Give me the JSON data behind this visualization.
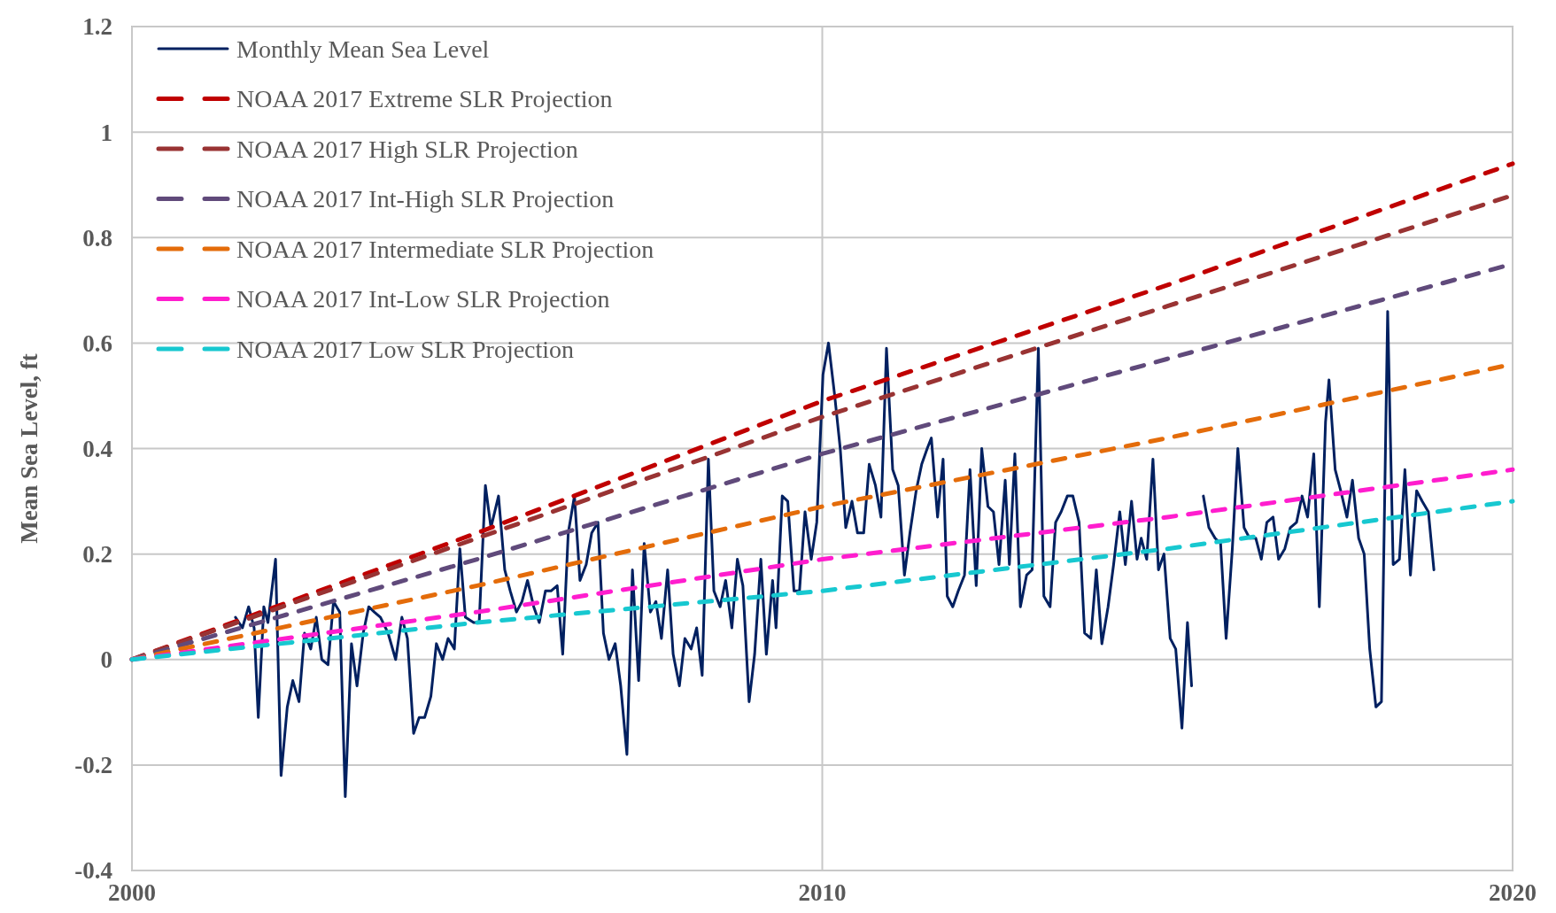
{
  "chart_data": {
    "type": "line",
    "ylabel": "Mean Sea Level, ft",
    "xlim": [
      2000,
      2020
    ],
    "xticks": [
      2000,
      2010,
      2020
    ],
    "ylim": [
      -0.4,
      1.2
    ],
    "yticks": [
      -0.4,
      -0.2,
      0,
      0.2,
      0.4,
      0.6,
      0.8,
      1,
      1.2
    ],
    "grid": true,
    "legend": "top left",
    "series": [
      {
        "name": "Monthly Mean Sea Level",
        "color": "#002060",
        "line_style": "solid",
        "x": [
          2001.5,
          2001.6,
          2001.69,
          2001.77,
          2001.83,
          2001.91,
          2001.97,
          2002.08,
          2002.16,
          2002.25,
          2002.33,
          2002.42,
          2002.5,
          2002.59,
          2002.67,
          2002.75,
          2002.84,
          2002.92,
          2003.01,
          2003.09,
          2003.18,
          2003.26,
          2003.35,
          2003.43,
          2003.51,
          2003.6,
          2003.71,
          2003.82,
          2003.91,
          2003.99,
          2004.08,
          2004.16,
          2004.24,
          2004.33,
          2004.41,
          2004.5,
          2004.58,
          2004.67,
          2004.75,
          2004.83,
          2004.95,
          2005.03,
          2005.12,
          2005.2,
          2005.31,
          2005.4,
          2005.48,
          2005.57,
          2005.65,
          2005.73,
          2005.82,
          2005.9,
          2005.99,
          2006.07,
          2006.16,
          2006.24,
          2006.32,
          2006.41,
          2006.49,
          2006.58,
          2006.66,
          2006.75,
          2006.83,
          2006.91,
          2007.0,
          2007.08,
          2007.17,
          2007.25,
          2007.34,
          2007.42,
          2007.51,
          2007.59,
          2007.67,
          2007.76,
          2007.84,
          2007.93,
          2008.01,
          2008.1,
          2008.18,
          2008.26,
          2008.35,
          2008.43,
          2008.52,
          2008.6,
          2008.69,
          2008.77,
          2008.85,
          2008.94,
          2009.02,
          2009.11,
          2009.19,
          2009.28,
          2009.33,
          2009.42,
          2009.5,
          2009.59,
          2009.67,
          2009.75,
          2009.84,
          2009.92,
          2010.01,
          2010.09,
          2010.18,
          2010.26,
          2010.34,
          2010.43,
          2010.51,
          2010.6,
          2010.68,
          2010.77,
          2010.85,
          2010.93,
          2011.02,
          2011.1,
          2011.19,
          2011.27,
          2011.36,
          2011.44,
          2011.52,
          2011.58,
          2011.67,
          2011.75,
          2011.81,
          2011.89,
          2011.97,
          2012.06,
          2012.14,
          2012.23,
          2012.31,
          2012.4,
          2012.48,
          2012.56,
          2012.65,
          2012.71,
          2012.79,
          2012.87,
          2012.96,
          2013.04,
          2013.13,
          2013.21,
          2013.3,
          2013.38,
          2013.46,
          2013.55,
          2013.63,
          2013.72,
          2013.8,
          2013.89,
          2013.97,
          2014.05,
          2014.14,
          2014.22,
          2014.31,
          2014.39,
          2014.48,
          2014.56,
          2014.62,
          2014.7,
          2014.79,
          2014.87,
          2014.95,
          2015.04,
          2015.12,
          2015.21,
          2015.29,
          2015.35,
          2015.45,
          2015.52,
          2015.6,
          2015.69,
          2015.77,
          2015.85,
          2015.94,
          2016.02,
          2016.11,
          2016.19,
          2016.28,
          2016.36,
          2016.44,
          2016.53,
          2016.61,
          2016.7,
          2016.78,
          2016.87,
          2016.95,
          2017.03,
          2017.12,
          2017.2,
          2017.29,
          2017.34,
          2017.43,
          2017.51,
          2017.6,
          2017.68,
          2017.77,
          2017.85,
          2017.93,
          2018.02,
          2018.1,
          2018.19,
          2018.27,
          2018.36,
          2018.44,
          2018.52,
          2018.61,
          2018.69,
          2018.78,
          2018.86
        ],
        "values": [
          0.08,
          0.06,
          0.1,
          0.06,
          -0.11,
          0.1,
          0.07,
          0.19,
          -0.22,
          -0.09,
          -0.04,
          -0.08,
          0.05,
          0.02,
          0.08,
          0.0,
          -0.01,
          0.11,
          0.09,
          -0.26,
          0.03,
          -0.05,
          0.05,
          0.1,
          0.09,
          0.08,
          0.05,
          0.0,
          0.08,
          0.04,
          -0.14,
          -0.11,
          -0.11,
          -0.07,
          0.03,
          0.0,
          0.04,
          0.02,
          0.21,
          0.08,
          0.07,
          0.07,
          0.33,
          0.25,
          0.31,
          0.17,
          0.13,
          0.09,
          0.11,
          0.15,
          0.1,
          0.07,
          0.13,
          0.13,
          0.14,
          0.01,
          0.24,
          0.31,
          0.15,
          0.18,
          0.24,
          0.26,
          0.05,
          0.0,
          0.03,
          -0.05,
          -0.18,
          0.17,
          -0.04,
          0.22,
          0.09,
          0.11,
          0.04,
          0.17,
          0.01,
          -0.05,
          0.04,
          0.02,
          0.06,
          -0.03,
          0.38,
          0.13,
          0.1,
          0.15,
          0.06,
          0.19,
          0.14,
          -0.08,
          0.01,
          0.19,
          0.01,
          0.15,
          0.06,
          0.31,
          0.3,
          0.13,
          0.13,
          0.28,
          0.19,
          0.26,
          0.54,
          0.6,
          0.5,
          0.4,
          0.25,
          0.3,
          0.24,
          0.24,
          0.37,
          0.33,
          0.27,
          0.59,
          0.36,
          0.33,
          0.16,
          0.24,
          0.32,
          0.37,
          0.4,
          0.42,
          0.27,
          0.38,
          0.12,
          0.1,
          0.13,
          0.16,
          0.36,
          0.14,
          0.4,
          0.29,
          0.28,
          0.18,
          0.34,
          0.18,
          0.39,
          0.1,
          0.16,
          0.17,
          0.59,
          0.12,
          0.1,
          0.26,
          0.28,
          0.31,
          0.31,
          0.26,
          0.05,
          0.04,
          0.17,
          0.03,
          0.1,
          0.18,
          0.28,
          0.18,
          0.3,
          0.19,
          0.23,
          0.19,
          0.38,
          0.17,
          0.2,
          0.04,
          0.02,
          -0.13,
          0.07,
          -0.05,
          null,
          0.31,
          0.25,
          0.23,
          0.22,
          0.04,
          0.21,
          0.4,
          0.25,
          0.23,
          0.23,
          0.19,
          0.26,
          0.27,
          0.19,
          0.21,
          0.25,
          0.26,
          0.31,
          0.27,
          0.39,
          0.1,
          0.45,
          0.53,
          0.36,
          0.32,
          0.27,
          0.34,
          0.23,
          0.2,
          0.02,
          -0.09,
          -0.08,
          0.66,
          0.18,
          0.19,
          0.36,
          0.16,
          0.32,
          0.3,
          0.28,
          0.17
        ]
      },
      {
        "name": "NOAA 2017 Extreme SLR Projection",
        "color": "#c00000",
        "line_style": "dashed",
        "x": [
          2000,
          2005,
          2010,
          2015,
          2020
        ],
        "values": [
          0,
          0.24,
          0.49,
          0.71,
          0.94
        ]
      },
      {
        "name": "NOAA 2017 High SLR Projection",
        "color": "#993333",
        "line_style": "dashed",
        "x": [
          2000,
          2005,
          2010,
          2015,
          2020
        ],
        "values": [
          0,
          0.23,
          0.46,
          0.67,
          0.88
        ]
      },
      {
        "name": "NOAA 2017 Int-High SLR Projection",
        "color": "#604a7b",
        "line_style": "dashed",
        "x": [
          2000,
          2005,
          2010,
          2015,
          2020
        ],
        "values": [
          0,
          0.19,
          0.39,
          0.57,
          0.75
        ]
      },
      {
        "name": "NOAA 2017 Intermediate SLR Projection",
        "color": "#e46c0a",
        "line_style": "dashed",
        "x": [
          2000,
          2005,
          2010,
          2015,
          2020
        ],
        "values": [
          0,
          0.14,
          0.29,
          0.42,
          0.56
        ]
      },
      {
        "name": "NOAA 2017 Int-Low SLR Projection",
        "color": "#ff1dce",
        "line_style": "dashed",
        "x": [
          2000,
          2005,
          2010,
          2015,
          2020
        ],
        "values": [
          0,
          0.09,
          0.19,
          0.27,
          0.36
        ]
      },
      {
        "name": "NOAA 2017 Low SLR Projection",
        "color": "#17c8d0",
        "line_style": "dashed",
        "x": [
          2000,
          2005,
          2010,
          2015,
          2020
        ],
        "values": [
          0,
          0.07,
          0.13,
          0.21,
          0.3
        ]
      }
    ]
  }
}
